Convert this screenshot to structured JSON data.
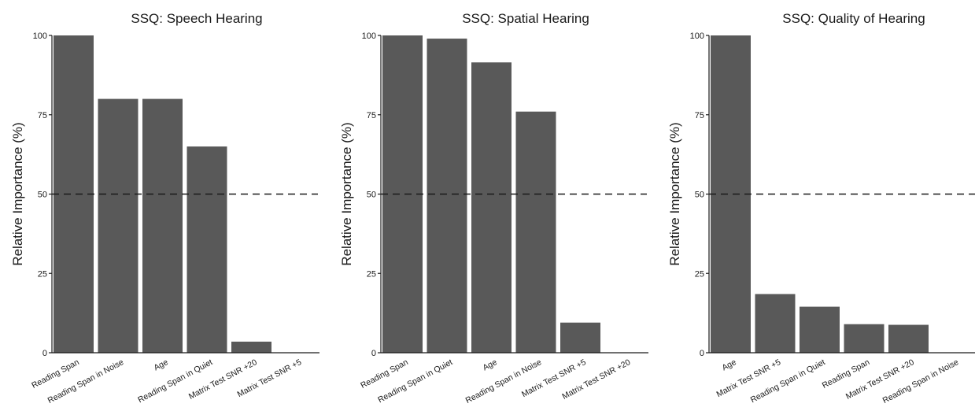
{
  "chart_data": [
    {
      "type": "bar",
      "title": "SSQ: Speech Hearing",
      "xlabel": "",
      "ylabel": "Relative Importance (%)",
      "ylim": [
        0,
        100
      ],
      "yticks": [
        0,
        25,
        50,
        75,
        100
      ],
      "reference_line": 50,
      "categories": [
        "Reading Span",
        "Reading Span in Noise",
        "Age",
        "Reading Span in Quiet",
        "Matrix Test SNR +20",
        "Matrix Test SNR +5"
      ],
      "values": [
        100,
        80,
        80,
        65,
        3.5,
        0
      ]
    },
    {
      "type": "bar",
      "title": "SSQ: Spatial Hearing",
      "xlabel": "",
      "ylabel": "Relative Importance (%)",
      "ylim": [
        0,
        100
      ],
      "yticks": [
        0,
        25,
        50,
        75,
        100
      ],
      "reference_line": 50,
      "categories": [
        "Reading Span",
        "Reading Span in Quiet",
        "Age",
        "Reading Span in Noise",
        "Matrix Test SNR +5",
        "Matrix Test SNR +20"
      ],
      "values": [
        100,
        99,
        91.5,
        76,
        9.5,
        0
      ]
    },
    {
      "type": "bar",
      "title": "SSQ: Quality of Hearing",
      "xlabel": "",
      "ylabel": "Relative Importance (%)",
      "ylim": [
        0,
        100
      ],
      "yticks": [
        0,
        25,
        50,
        75,
        100
      ],
      "reference_line": 50,
      "categories": [
        "Age",
        "Matrix Test SNR +5",
        "Reading Span in Quiet",
        "Reading Span",
        "Matrix Test SNR +20",
        "Reading Span in Noise"
      ],
      "values": [
        100,
        18.5,
        14.5,
        9,
        8.8,
        0
      ]
    }
  ]
}
